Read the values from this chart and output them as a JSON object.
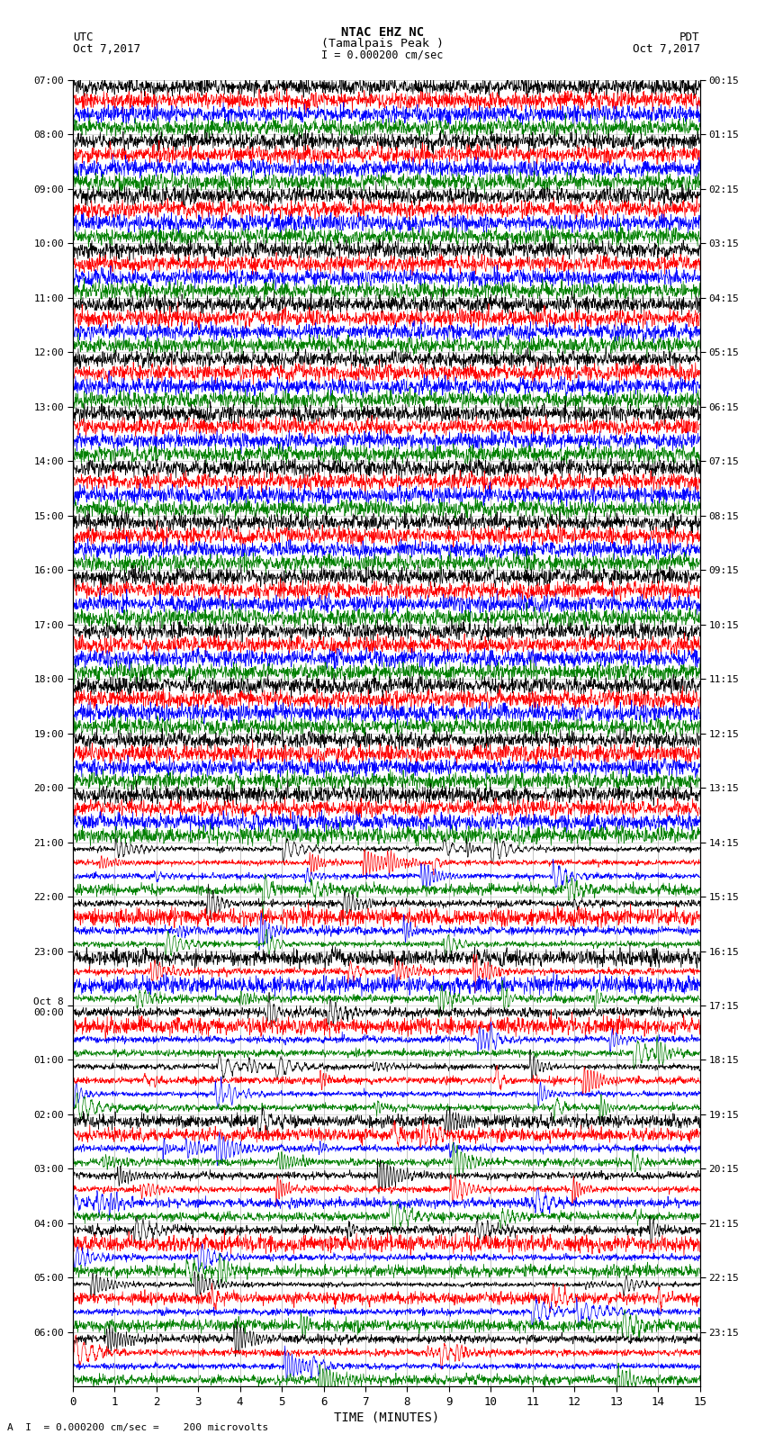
{
  "title_line1": "NTAC EHZ NC",
  "title_line2": "(Tamalpais Peak )",
  "utc_label": "UTC",
  "utc_date": "Oct 7,2017",
  "pdt_label": "PDT",
  "pdt_date": "Oct 7,2017",
  "xlabel": "TIME (MINUTES)",
  "scale_line": "I = 0.000200 cm/sec",
  "bottom_note": "A  I  = 0.000200 cm/sec =    200 microvolts",
  "left_times": [
    "07:00",
    "08:00",
    "09:00",
    "10:00",
    "11:00",
    "12:00",
    "13:00",
    "14:00",
    "15:00",
    "16:00",
    "17:00",
    "18:00",
    "19:00",
    "20:00",
    "21:00",
    "22:00",
    "23:00",
    "Oct 8\n00:00",
    "01:00",
    "02:00",
    "03:00",
    "04:00",
    "05:00",
    "06:00"
  ],
  "right_times": [
    "00:15",
    "01:15",
    "02:15",
    "03:15",
    "04:15",
    "05:15",
    "06:15",
    "07:15",
    "08:15",
    "09:15",
    "10:15",
    "11:15",
    "12:15",
    "13:15",
    "14:15",
    "15:15",
    "16:15",
    "17:15",
    "18:15",
    "19:15",
    "20:15",
    "21:15",
    "22:15",
    "23:15"
  ],
  "n_rows": 24,
  "traces_per_row": 4,
  "trace_colors": [
    "black",
    "red",
    "blue",
    "green"
  ],
  "xmin": 0,
  "xmax": 15,
  "x_ticks": [
    0,
    1,
    2,
    3,
    4,
    5,
    6,
    7,
    8,
    9,
    10,
    11,
    12,
    13,
    14,
    15
  ],
  "bg_color": "#ffffff",
  "grid_color": "#aaaaaa",
  "figsize": [
    8.5,
    16.13
  ],
  "dpi": 100,
  "quiet_rows": [
    0,
    1,
    2,
    3,
    4,
    5,
    6,
    7,
    8,
    9,
    10,
    11,
    12,
    13
  ],
  "active_rows": [
    14,
    15,
    16,
    17,
    18,
    19,
    20,
    21,
    22,
    23
  ],
  "quiet_noise": 0.012,
  "active_noise": 0.08
}
